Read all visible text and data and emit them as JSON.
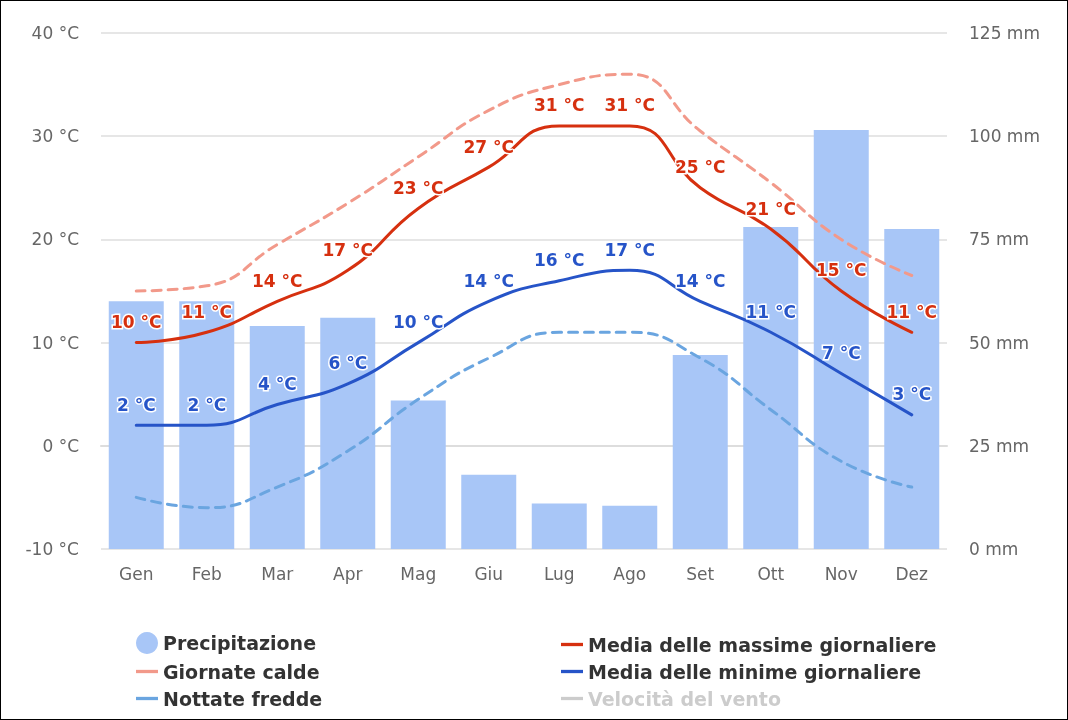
{
  "chart_data": {
    "type": "line",
    "categories": [
      "Gen",
      "Feb",
      "Mar",
      "Apr",
      "Mag",
      "Giu",
      "Lug",
      "Ago",
      "Set",
      "Ott",
      "Nov",
      "Dez"
    ],
    "ylim": [
      -10,
      40
    ],
    "yticks": [
      {
        "value": -10,
        "label": "-10 °C"
      },
      {
        "value": 0,
        "label": "0 °C"
      },
      {
        "value": 10,
        "label": "10 °C"
      },
      {
        "value": 20,
        "label": "20 °C"
      },
      {
        "value": 30,
        "label": "30 °C"
      },
      {
        "value": 40,
        "label": "40 °C"
      }
    ],
    "y2lim": [
      0,
      125
    ],
    "y2ticks": [
      {
        "value": 0,
        "label": "0 mm"
      },
      {
        "value": 25,
        "label": "25 mm"
      },
      {
        "value": 50,
        "label": "50 mm"
      },
      {
        "value": 75,
        "label": "75 mm"
      },
      {
        "value": 100,
        "label": "100 mm"
      },
      {
        "value": 125,
        "label": "125 mm"
      }
    ],
    "grid": "y",
    "legend": "bottom",
    "series": [
      {
        "name": "Precipitazione",
        "type": "bar",
        "axis": "y2",
        "color": "#a8c6f7",
        "values": [
          60,
          60,
          54,
          56,
          36,
          18,
          11,
          10.5,
          47,
          78,
          101.5,
          77.5
        ]
      },
      {
        "name": "Giornate calde",
        "color": "#f2998a",
        "line_style": "dashed",
        "values": [
          15,
          15.5,
          19.5,
          23.5,
          28,
          32.5,
          35,
          36,
          30.5,
          25.5,
          20,
          16.5
        ]
      },
      {
        "name": "Nottate fredde",
        "color": "#6aa5e0",
        "line_style": "dashed",
        "values": [
          -5,
          -6,
          -4,
          -0.5,
          4.5,
          8.5,
          11,
          11,
          8.5,
          3.5,
          -1.5,
          -4
        ]
      },
      {
        "name": "Media delle massime giornaliere",
        "color": "#d6300f",
        "line_style": "solid",
        "values": [
          10,
          11,
          14,
          17,
          23,
          27,
          31,
          31,
          25,
          21,
          15,
          11
        ],
        "value_labels": [
          "10 °C",
          "11 °C",
          "14 °C",
          "17 °C",
          "23 °C",
          "27 °C",
          "31 °C",
          "31 °C",
          "25 °C",
          "21 °C",
          "15 °C",
          "11 °C"
        ]
      },
      {
        "name": "Media delle minime giornaliere",
        "color": "#2654c8",
        "line_style": "solid",
        "values": [
          2,
          2,
          4,
          6,
          10,
          14,
          16,
          17,
          14,
          11,
          7,
          3
        ],
        "value_labels": [
          "2 °C",
          "2 °C",
          "4 °C",
          "6 °C",
          "10 °C",
          "14 °C",
          "16 °C",
          "17 °C",
          "14 °C",
          "11 °C",
          "7 °C",
          "3 °C"
        ]
      },
      {
        "name": "Velocità del vento",
        "color": "#cccccc",
        "line_style": "solid",
        "values": [
          null,
          null,
          null,
          null,
          null,
          null,
          null,
          null,
          null,
          null,
          null,
          null
        ]
      }
    ]
  }
}
